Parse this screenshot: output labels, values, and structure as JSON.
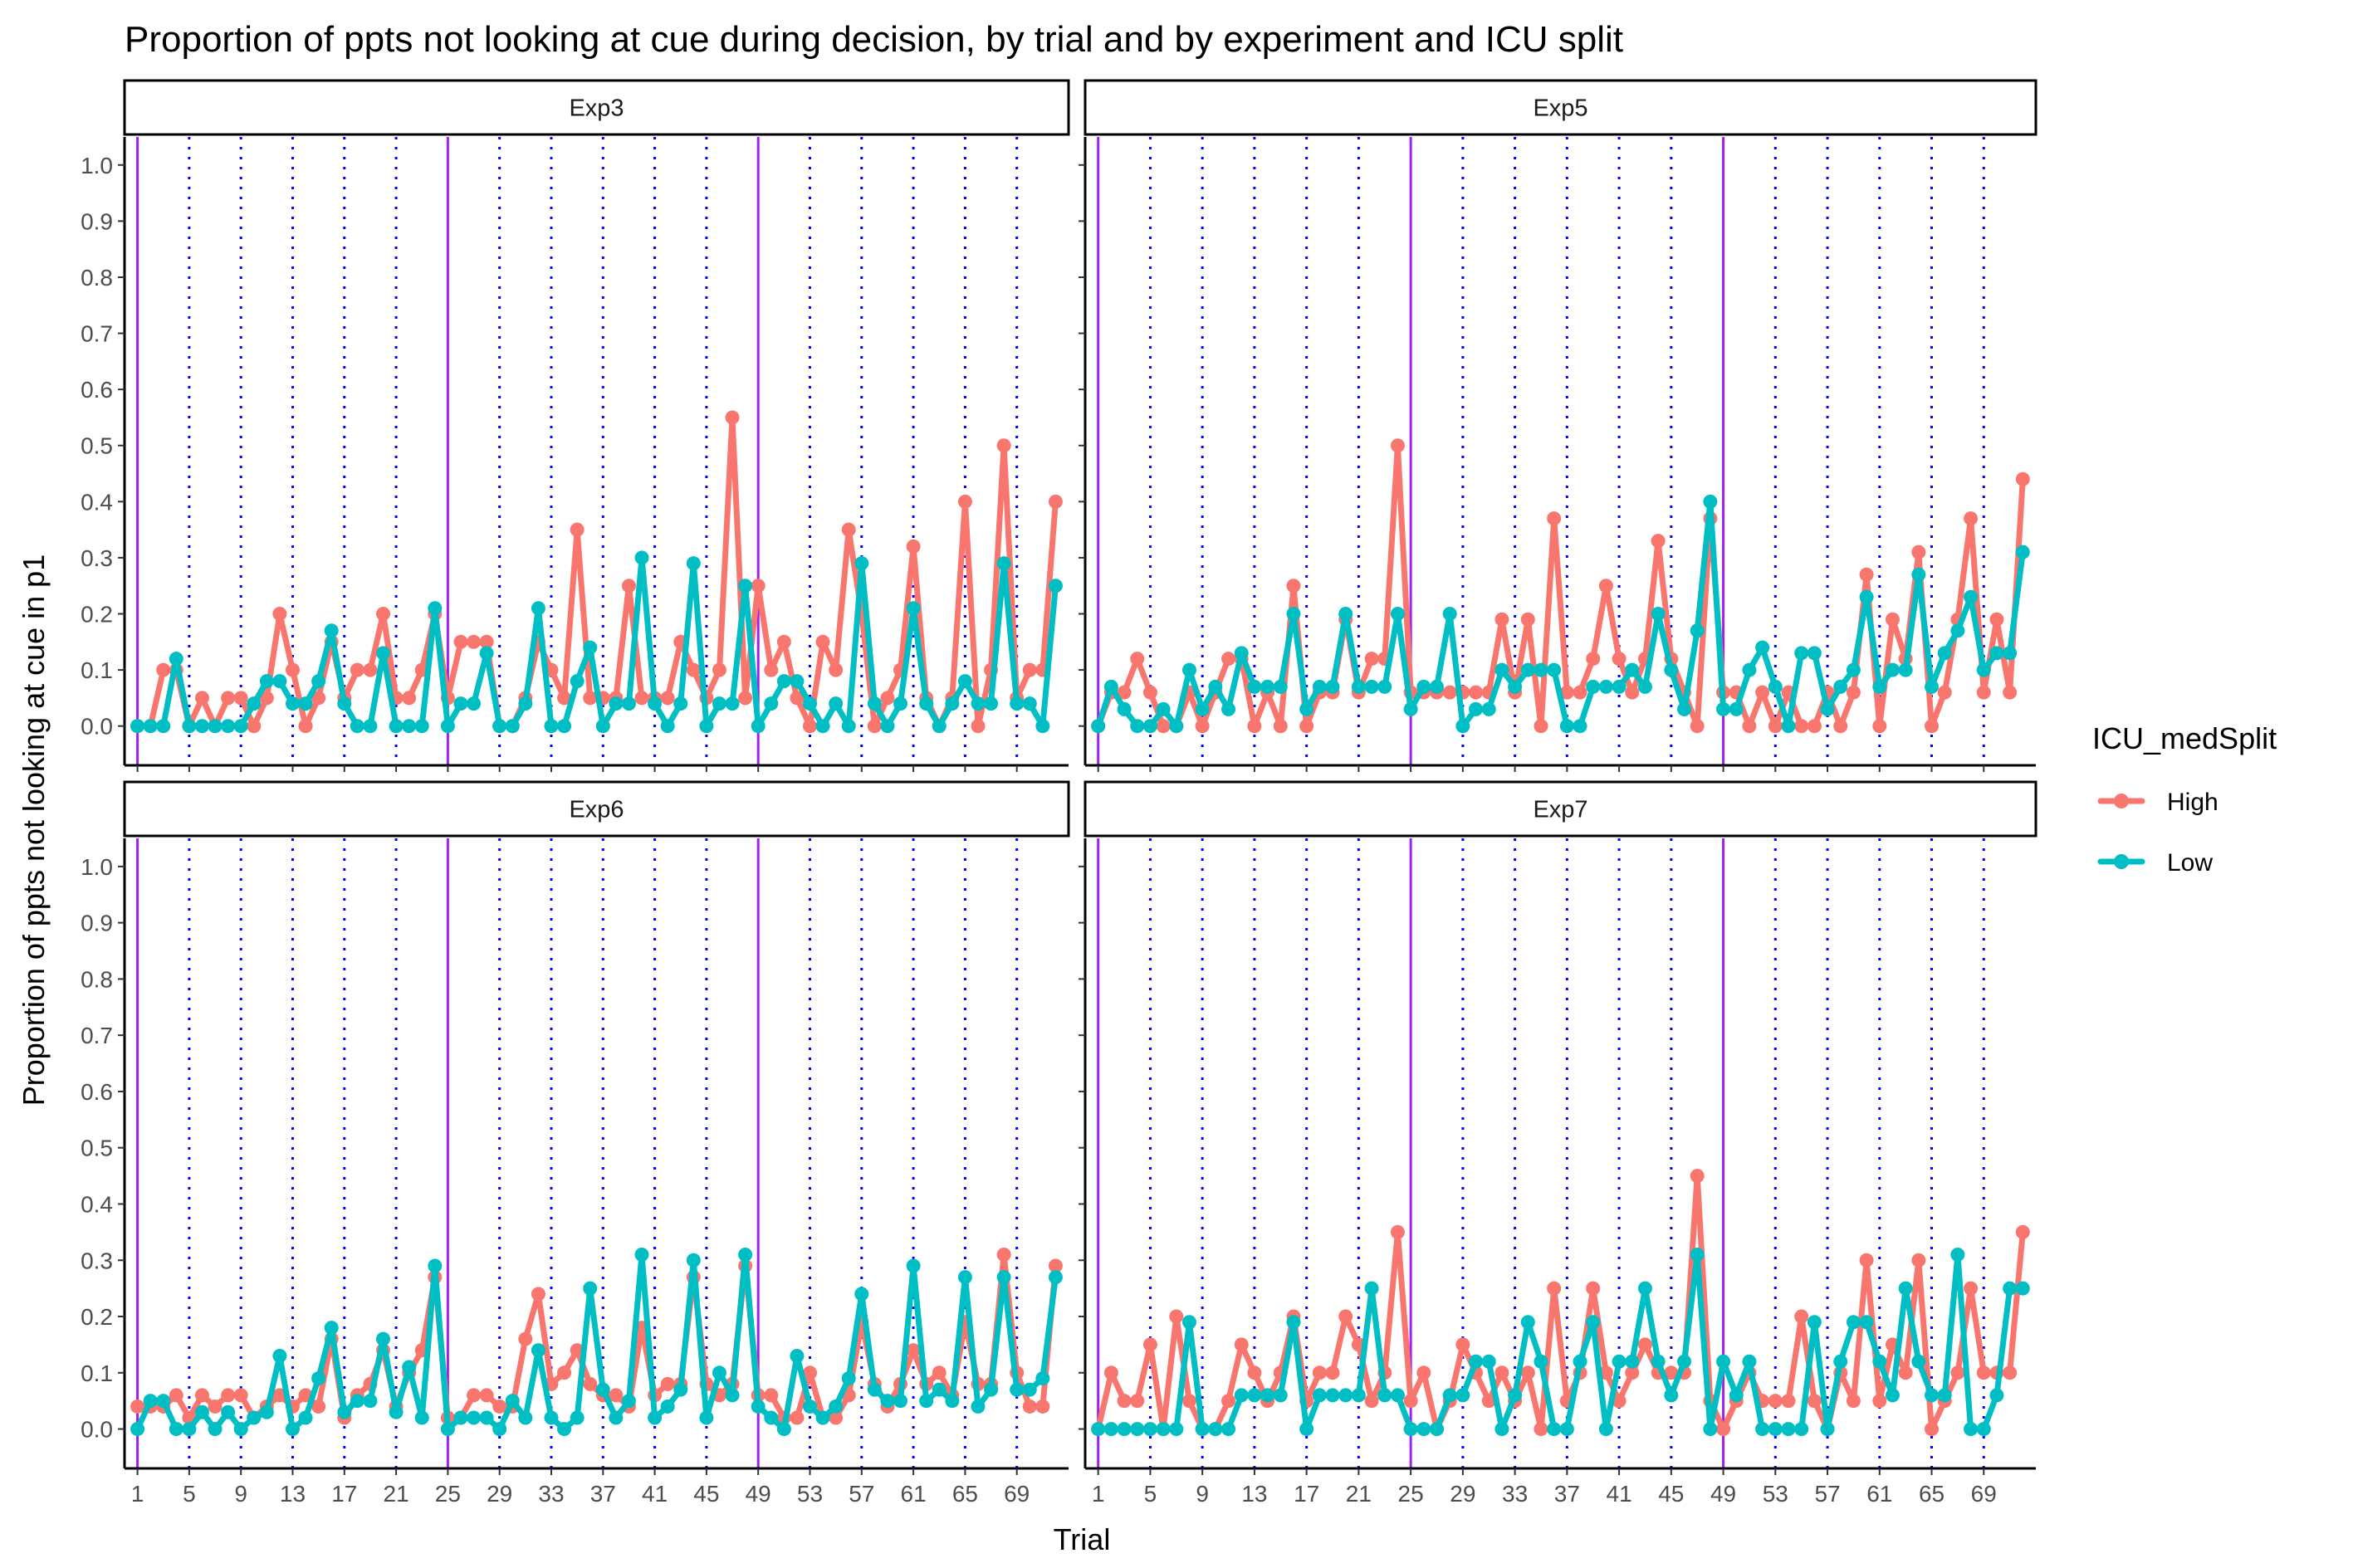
{
  "chart_data": {
    "type": "line",
    "title": "Proportion of ppts not looking at cue during decision, by trial and by experiment and ICU split",
    "xlabel": "Trial",
    "ylabel": "Proportion of ppts not looking at cue in p1",
    "xlim": [
      0,
      73
    ],
    "ylim": [
      -0.07,
      1.05
    ],
    "y_ticks": [
      "0.0",
      "0.1",
      "0.2",
      "0.3",
      "0.4",
      "0.5",
      "0.6",
      "0.7",
      "0.8",
      "0.9",
      "1.0"
    ],
    "x_ticks": [
      "1",
      "5",
      "9",
      "13",
      "17",
      "21",
      "25",
      "29",
      "33",
      "37",
      "41",
      "45",
      "49",
      "53",
      "57",
      "61",
      "65",
      "69"
    ],
    "block_lines": [
      1,
      25,
      49
    ],
    "dotted_lines": [
      5,
      9,
      13,
      17,
      21,
      29,
      33,
      37,
      41,
      45,
      53,
      57,
      61,
      65,
      69
    ],
    "block_line_color": "#a020f0",
    "dotted_line_color": "#0000ff",
    "grid": false,
    "legend": {
      "title": "ICU_medSplit",
      "position": "right",
      "entries": [
        {
          "name": "High",
          "color": "#f8766d"
        },
        {
          "name": "Low",
          "color": "#00bfc4"
        }
      ]
    },
    "panels": [
      {
        "name": "Exp3",
        "x_start": 1,
        "series": [
          {
            "name": "High",
            "values": [
              0,
              0,
              0.1,
              0.1,
              0,
              0.05,
              0,
              0.05,
              0.05,
              0,
              0.05,
              0.2,
              0.1,
              0,
              0.05,
              0.15,
              0.05,
              0.1,
              0.1,
              0.2,
              0.05,
              0.05,
              0.1,
              0.2,
              0.05,
              0.15,
              0.15,
              0.15,
              0,
              0,
              0.05,
              0.15,
              0.1,
              0.05,
              0.35,
              0.05,
              0.05,
              0.05,
              0.25,
              0.05,
              0.05,
              0.05,
              0.15,
              0.1,
              0.05,
              0.1,
              0.55,
              0.05,
              0.25,
              0.1,
              0.15,
              0.05,
              0,
              0.15,
              0.1,
              0.35,
              0.2,
              0,
              0.05,
              0.1,
              0.32,
              0.05,
              0,
              0.05,
              0.4,
              0,
              0.1,
              0.5,
              0.05,
              0.1,
              0.1,
              0.4
            ]
          },
          {
            "name": "Low",
            "values": [
              0,
              0,
              0,
              0.12,
              0,
              0,
              0,
              0,
              0,
              0.04,
              0.08,
              0.08,
              0.04,
              0.04,
              0.08,
              0.17,
              0.04,
              0,
              0,
              0.13,
              0,
              0,
              0,
              0.21,
              0,
              0.04,
              0.04,
              0.13,
              0,
              0,
              0.04,
              0.21,
              0,
              0,
              0.08,
              0.14,
              0,
              0.04,
              0.04,
              0.3,
              0.04,
              0,
              0.04,
              0.29,
              0,
              0.04,
              0.04,
              0.25,
              0,
              0.04,
              0.08,
              0.08,
              0.04,
              0,
              0.04,
              0,
              0.29,
              0.04,
              0,
              0.04,
              0.21,
              0.04,
              0,
              0.04,
              0.08,
              0.04,
              0.04,
              0.29,
              0.04,
              0.04,
              0,
              0.25
            ]
          }
        ]
      },
      {
        "name": "Exp5",
        "x_start": 1,
        "series": [
          {
            "name": "High",
            "values": [
              0,
              0.06,
              0.06,
              0.12,
              0.06,
              0,
              0,
              0.06,
              0,
              0.06,
              0.12,
              0.12,
              0,
              0.06,
              0,
              0.25,
              0,
              0.06,
              0.06,
              0.19,
              0.06,
              0.12,
              0.12,
              0.5,
              0.06,
              0.06,
              0.06,
              0.06,
              0.06,
              0.06,
              0.06,
              0.19,
              0.06,
              0.19,
              0,
              0.37,
              0.06,
              0.06,
              0.12,
              0.25,
              0.12,
              0.06,
              0.12,
              0.33,
              0.12,
              0.06,
              0,
              0.37,
              0.06,
              0.06,
              0,
              0.06,
              0,
              0.06,
              0,
              0,
              0.06,
              0,
              0.06,
              0.27,
              0,
              0.19,
              0.12,
              0.31,
              0,
              0.06,
              0.19,
              0.37,
              0.06,
              0.19,
              0.06,
              0.44
            ]
          },
          {
            "name": "Low",
            "values": [
              0,
              0.07,
              0.03,
              0,
              0,
              0.03,
              0,
              0.1,
              0.03,
              0.07,
              0.03,
              0.13,
              0.07,
              0.07,
              0.07,
              0.2,
              0.03,
              0.07,
              0.07,
              0.2,
              0.07,
              0.07,
              0.07,
              0.2,
              0.03,
              0.07,
              0.07,
              0.2,
              0,
              0.03,
              0.03,
              0.1,
              0.07,
              0.1,
              0.1,
              0.1,
              0,
              0,
              0.07,
              0.07,
              0.07,
              0.1,
              0.07,
              0.2,
              0.1,
              0.03,
              0.17,
              0.4,
              0.03,
              0.03,
              0.1,
              0.14,
              0.07,
              0,
              0.13,
              0.13,
              0.03,
              0.07,
              0.1,
              0.23,
              0.07,
              0.1,
              0.1,
              0.27,
              0.07,
              0.13,
              0.17,
              0.23,
              0.1,
              0.13,
              0.13,
              0.31
            ]
          }
        ]
      },
      {
        "name": "Exp6",
        "x_start": 1,
        "series": [
          {
            "name": "High",
            "values": [
              0.04,
              0.04,
              0.04,
              0.06,
              0.02,
              0.06,
              0.04,
              0.06,
              0.06,
              0.02,
              0.04,
              0.06,
              0.04,
              0.06,
              0.04,
              0.16,
              0.02,
              0.06,
              0.08,
              0.14,
              0.04,
              0.1,
              0.14,
              0.27,
              0.02,
              0.02,
              0.06,
              0.06,
              0.04,
              0.04,
              0.16,
              0.24,
              0.08,
              0.1,
              0.14,
              0.08,
              0.06,
              0.06,
              0.04,
              0.18,
              0.06,
              0.08,
              0.08,
              0.27,
              0.08,
              0.06,
              0.08,
              0.29,
              0.06,
              0.06,
              0.02,
              0.02,
              0.1,
              0.02,
              0.02,
              0.06,
              0.19,
              0.08,
              0.04,
              0.08,
              0.14,
              0.08,
              0.1,
              0.06,
              0.19,
              0.08,
              0.08,
              0.31,
              0.1,
              0.04,
              0.04,
              0.29
            ]
          },
          {
            "name": "Low",
            "values": [
              0,
              0.05,
              0.05,
              0,
              0,
              0.03,
              0,
              0.03,
              0,
              0.02,
              0.03,
              0.13,
              0,
              0.02,
              0.09,
              0.18,
              0.03,
              0.05,
              0.05,
              0.16,
              0.03,
              0.11,
              0.02,
              0.29,
              0,
              0.02,
              0.02,
              0.02,
              0,
              0.05,
              0.02,
              0.14,
              0.02,
              0,
              0.02,
              0.25,
              0.07,
              0.02,
              0.05,
              0.31,
              0.02,
              0.04,
              0.07,
              0.3,
              0.02,
              0.1,
              0.06,
              0.31,
              0.04,
              0.02,
              0,
              0.13,
              0.04,
              0.02,
              0.04,
              0.09,
              0.24,
              0.07,
              0.05,
              0.05,
              0.29,
              0.05,
              0.07,
              0.05,
              0.27,
              0.04,
              0.07,
              0.27,
              0.07,
              0.07,
              0.09,
              0.27
            ]
          }
        ]
      },
      {
        "name": "Exp7",
        "x_start": 1,
        "series": [
          {
            "name": "High",
            "values": [
              0,
              0.1,
              0.05,
              0.05,
              0.15,
              0,
              0.2,
              0.05,
              0,
              0,
              0.05,
              0.15,
              0.1,
              0.05,
              0.1,
              0.2,
              0.05,
              0.1,
              0.1,
              0.2,
              0.15,
              0.05,
              0.1,
              0.35,
              0.05,
              0.1,
              0,
              0.05,
              0.15,
              0.1,
              0.05,
              0.1,
              0.05,
              0.1,
              0,
              0.25,
              0.05,
              0.1,
              0.25,
              0.1,
              0.05,
              0.1,
              0.15,
              0.1,
              0.1,
              0.1,
              0.45,
              0.05,
              0,
              0.05,
              0.1,
              0.05,
              0.05,
              0.05,
              0.2,
              0.05,
              0,
              0.1,
              0.05,
              0.3,
              0.05,
              0.15,
              0.1,
              0.3,
              0,
              0.05,
              0.1,
              0.25,
              0.1,
              0.1,
              0.1,
              0.35
            ]
          },
          {
            "name": "Low",
            "values": [
              0,
              0,
              0,
              0,
              0,
              0,
              0,
              0.19,
              0,
              0,
              0,
              0.06,
              0.06,
              0.06,
              0.06,
              0.19,
              0,
              0.06,
              0.06,
              0.06,
              0.06,
              0.25,
              0.06,
              0.06,
              0,
              0,
              0,
              0.06,
              0.06,
              0.12,
              0.12,
              0,
              0.06,
              0.19,
              0.12,
              0,
              0,
              0.12,
              0.19,
              0,
              0.12,
              0.12,
              0.25,
              0.12,
              0.06,
              0.12,
              0.31,
              0,
              0.12,
              0.06,
              0.12,
              0,
              0,
              0,
              0,
              0.19,
              0,
              0.12,
              0.19,
              0.19,
              0.12,
              0.06,
              0.25,
              0.12,
              0.06,
              0.06,
              0.31,
              0,
              0,
              0.06,
              0.25,
              0.25
            ]
          }
        ]
      }
    ]
  }
}
